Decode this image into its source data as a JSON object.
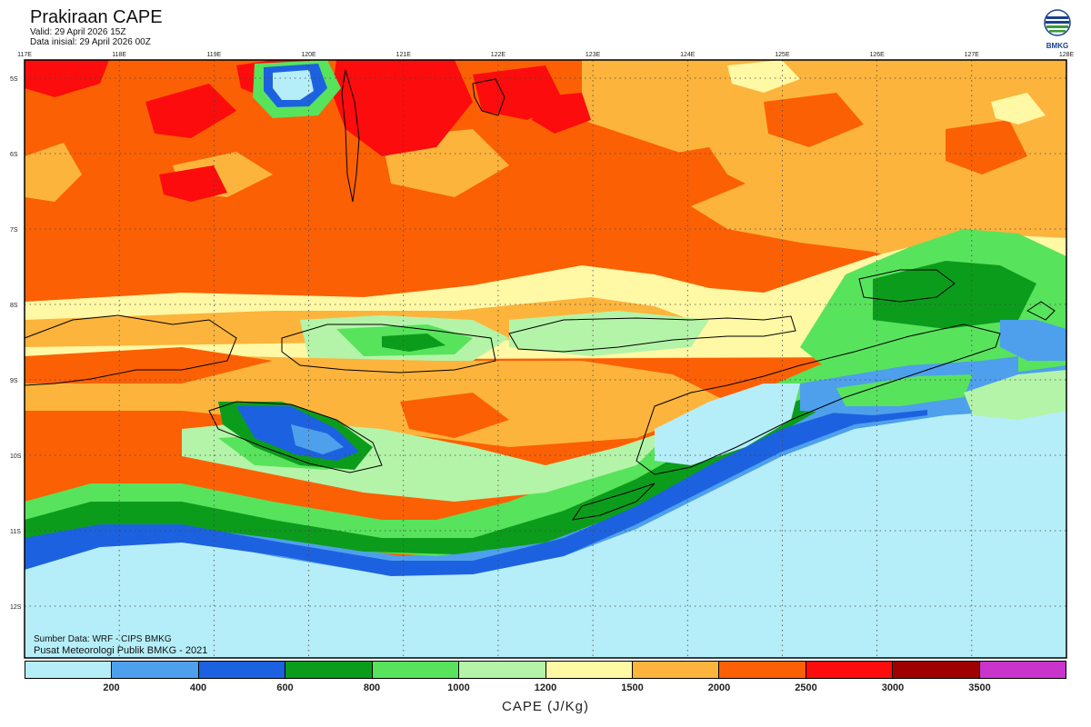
{
  "header": {
    "title": "Prakiraan CAPE",
    "valid": "Valid: 29 April 2026 15Z",
    "init": "Data inisial: 29 April 2026 00Z"
  },
  "logo": {
    "text": "BMKG",
    "icon": "bmkg-logo-icon",
    "colors": [
      "#1a3f8c",
      "#3a9b3a"
    ]
  },
  "map": {
    "lon_labels": [
      "117E",
      "118E",
      "119E",
      "120E",
      "121E",
      "122E",
      "123E",
      "124E",
      "125E",
      "126E",
      "127E",
      "128E"
    ],
    "lat_labels": [
      "5S",
      "6S",
      "7S",
      "8S",
      "9S",
      "10S",
      "11S",
      "12S"
    ]
  },
  "credits": {
    "source": "Sumber Data: WRF - CIPS BMKG",
    "org": "Pusat Meteorologi Publik BMKG - 2021"
  },
  "colorbar": {
    "colors": [
      "#b5eef8",
      "#4ea0ec",
      "#1c62e0",
      "#0c9c1c",
      "#58e35c",
      "#b4f4a8",
      "#fff8a4",
      "#fcb43c",
      "#fc6004",
      "#fc0c0c",
      "#9e0000",
      "#c834cc"
    ],
    "tick_labels": [
      "200",
      "400",
      "600",
      "800",
      "1000",
      "1200",
      "1500",
      "2000",
      "2500",
      "3000",
      "3500"
    ],
    "label": "CAPE (J/Kg)"
  }
}
